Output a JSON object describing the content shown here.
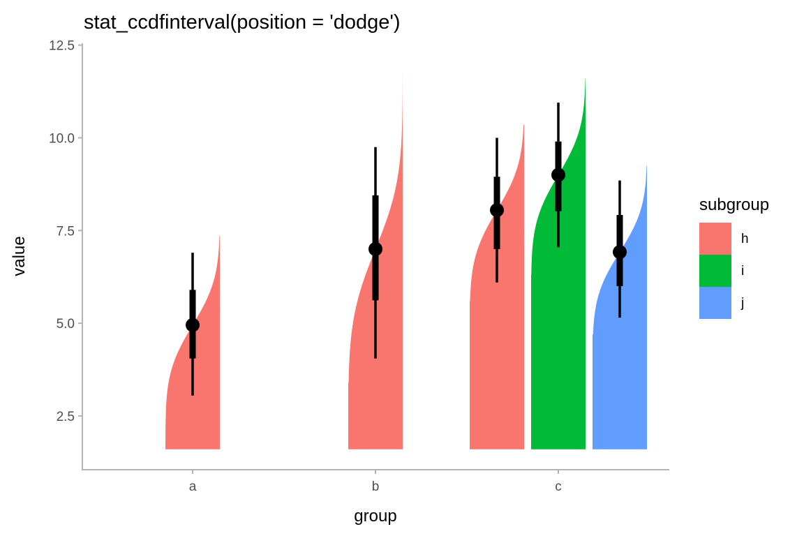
{
  "chart_data": {
    "type": "ccdf-interval",
    "title": "stat_ccdfinterval(position = 'dodge')",
    "xlabel": "group",
    "ylabel": "value",
    "categories": [
      "a",
      "b",
      "c"
    ],
    "ylim": [
      1.05,
      12.55
    ],
    "yticks": [
      2.5,
      5.0,
      7.5,
      10.0,
      12.5
    ],
    "ytick_labels": [
      "2.5",
      "5.0",
      "7.5",
      "10.0",
      "12.5"
    ],
    "baseline": 1.6,
    "grid": false,
    "legend": {
      "title": "subgroup",
      "position": "right",
      "entries": [
        {
          "label": "h",
          "color": "#F8766D"
        },
        {
          "label": "i",
          "color": "#00BA38"
        },
        {
          "label": "j",
          "color": "#619CFF"
        }
      ]
    },
    "series": [
      {
        "group": "a",
        "subgroup": "h",
        "color": "#F8766D",
        "min": 1.7,
        "max": 7.35,
        "median": 4.95,
        "inner": [
          4.05,
          5.9
        ],
        "outer": [
          3.05,
          6.9
        ]
      },
      {
        "group": "b",
        "subgroup": "h",
        "color": "#F8766D",
        "min": 3.4,
        "max": 11.75,
        "median": 7.0,
        "inner": [
          5.62,
          8.45
        ],
        "outer": [
          4.05,
          9.75
        ]
      },
      {
        "group": "c",
        "subgroup": "h",
        "color": "#F8766D",
        "min": 5.6,
        "max": 10.35,
        "median": 8.05,
        "inner": [
          7.0,
          8.95
        ],
        "outer": [
          6.1,
          10.0
        ]
      },
      {
        "group": "c",
        "subgroup": "i",
        "color": "#00BA38",
        "min": 6.3,
        "max": 11.6,
        "median": 9.0,
        "inner": [
          8.02,
          9.9
        ],
        "outer": [
          7.05,
          10.95
        ]
      },
      {
        "group": "c",
        "subgroup": "j",
        "color": "#619CFF",
        "min": 4.7,
        "max": 9.25,
        "median": 6.92,
        "inner": [
          6.0,
          7.92
        ],
        "outer": [
          5.15,
          8.85
        ]
      }
    ]
  }
}
